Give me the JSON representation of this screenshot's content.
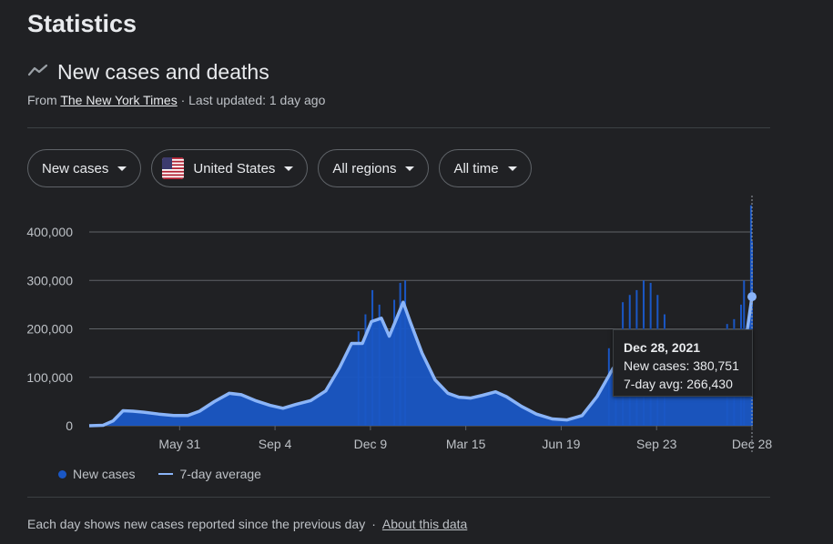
{
  "page": {
    "title": "Statistics"
  },
  "section": {
    "title": "New cases and deaths",
    "icon": "trending-line-icon",
    "source_prefix": "From",
    "source_name": "The New York Times",
    "updated": "· Last updated: 1 day ago"
  },
  "filters": {
    "metric": "New cases",
    "country": "United States",
    "country_icon": "us-flag-icon",
    "region": "All regions",
    "period": "All time"
  },
  "tooltip": {
    "date": "Dec 28, 2021",
    "cases_label": "New cases:",
    "cases_value": "380,751",
    "avg_label": "7-day avg:",
    "avg_value": "266,430"
  },
  "legend": {
    "cases": "New cases",
    "avg": "7-day average"
  },
  "footer": {
    "note": "Each day shows new cases reported since the previous day",
    "separator": "·",
    "link": "About this data"
  },
  "colors": {
    "bars": "#1a57c5",
    "average_line": "#8ab4f8",
    "background": "#202124",
    "grid": "#5f6368"
  },
  "chart_data": {
    "type": "bar",
    "ylim": [
      0,
      400000
    ],
    "yticks": [
      0,
      100000,
      200000,
      300000,
      400000
    ],
    "ytick_labels": [
      "0",
      "100,000",
      "200,000",
      "300,000",
      "400,000"
    ],
    "xtick_labels": [
      "May 31",
      "Sep 4",
      "Dec 9",
      "Mar 15",
      "Jun 19",
      "Sep 23",
      "Dec 28"
    ],
    "xticks": [
      "2020-05-31",
      "2020-09-04",
      "2020-12-09",
      "2021-03-15",
      "2021-06-19",
      "2021-09-23",
      "2021-12-28"
    ],
    "x_start": "2020-03-01",
    "x_end": "2021-12-28",
    "series": [
      {
        "name": "7-day average",
        "points": [
          [
            "2020-03-01",
            0
          ],
          [
            "2020-03-15",
            1000
          ],
          [
            "2020-03-25",
            10000
          ],
          [
            "2020-04-04",
            31000
          ],
          [
            "2020-04-14",
            30000
          ],
          [
            "2020-04-25",
            28000
          ],
          [
            "2020-05-10",
            24000
          ],
          [
            "2020-05-25",
            21000
          ],
          [
            "2020-06-08",
            21000
          ],
          [
            "2020-06-20",
            30000
          ],
          [
            "2020-07-05",
            50000
          ],
          [
            "2020-07-20",
            67000
          ],
          [
            "2020-08-01",
            64000
          ],
          [
            "2020-08-15",
            52000
          ],
          [
            "2020-08-30",
            42000
          ],
          [
            "2020-09-12",
            36000
          ],
          [
            "2020-09-25",
            44000
          ],
          [
            "2020-10-10",
            52000
          ],
          [
            "2020-10-25",
            72000
          ],
          [
            "2020-11-08",
            120000
          ],
          [
            "2020-11-20",
            170000
          ],
          [
            "2020-12-01",
            170000
          ],
          [
            "2020-12-10",
            215000
          ],
          [
            "2020-12-20",
            222000
          ],
          [
            "2020-12-28",
            185000
          ],
          [
            "2021-01-05",
            225000
          ],
          [
            "2021-01-11",
            255000
          ],
          [
            "2021-01-18",
            215000
          ],
          [
            "2021-01-30",
            150000
          ],
          [
            "2021-02-12",
            95000
          ],
          [
            "2021-02-25",
            67000
          ],
          [
            "2021-03-08",
            59000
          ],
          [
            "2021-03-20",
            57000
          ],
          [
            "2021-04-01",
            63000
          ],
          [
            "2021-04-14",
            70000
          ],
          [
            "2021-04-25",
            60000
          ],
          [
            "2021-05-10",
            40000
          ],
          [
            "2021-05-25",
            24000
          ],
          [
            "2021-06-10",
            14000
          ],
          [
            "2021-06-25",
            12000
          ],
          [
            "2021-07-10",
            21000
          ],
          [
            "2021-07-25",
            60000
          ],
          [
            "2021-08-10",
            118000
          ],
          [
            "2021-08-25",
            152000
          ],
          [
            "2021-09-05",
            160000
          ],
          [
            "2021-09-15",
            140000
          ],
          [
            "2021-09-28",
            112000
          ],
          [
            "2021-10-12",
            90000
          ],
          [
            "2021-10-26",
            72000
          ],
          [
            "2021-11-08",
            73000
          ],
          [
            "2021-11-20",
            90000
          ],
          [
            "2021-12-01",
            90000
          ],
          [
            "2021-12-12",
            120000
          ],
          [
            "2021-12-21",
            165000
          ],
          [
            "2021-12-28",
            266430
          ]
        ]
      },
      {
        "name": "New cases",
        "selected": {
          "date": "2021-12-28",
          "value": 380751
        },
        "spikes": [
          [
            "2020-11-27",
            195000
          ],
          [
            "2020-12-04",
            230000
          ],
          [
            "2020-12-11",
            280000
          ],
          [
            "2020-12-18",
            250000
          ],
          [
            "2021-01-02",
            260000
          ],
          [
            "2021-01-08",
            295000
          ],
          [
            "2021-01-13",
            300000
          ],
          [
            "2021-08-06",
            160000
          ],
          [
            "2021-08-13",
            190000
          ],
          [
            "2021-08-20",
            255000
          ],
          [
            "2021-08-27",
            270000
          ],
          [
            "2021-09-03",
            280000
          ],
          [
            "2021-09-10",
            300000
          ],
          [
            "2021-09-17",
            295000
          ],
          [
            "2021-09-24",
            270000
          ],
          [
            "2021-10-01",
            230000
          ],
          [
            "2021-12-03",
            210000
          ],
          [
            "2021-12-10",
            220000
          ],
          [
            "2021-12-17",
            250000
          ],
          [
            "2021-12-20",
            300000
          ],
          [
            "2021-12-27",
            455000
          ],
          [
            "2021-12-28",
            380751
          ]
        ]
      }
    ]
  }
}
